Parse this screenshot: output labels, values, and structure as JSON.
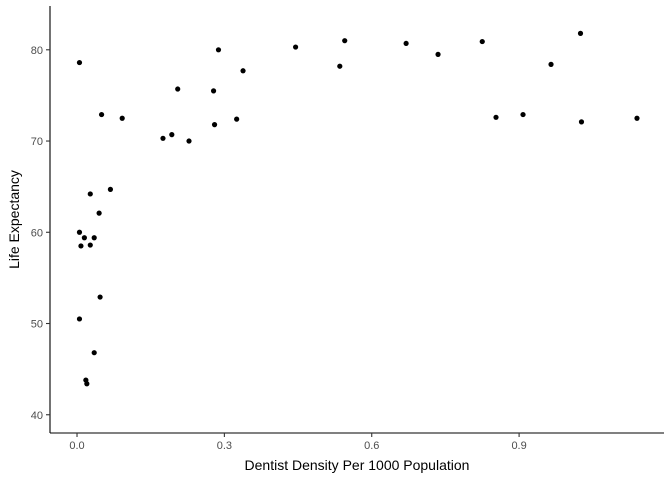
{
  "chart_data": {
    "type": "scatter",
    "title": "",
    "xlabel": "Dentist Density Per 1000 Population",
    "ylabel": "Life Expectancy",
    "xlim": [
      -0.055,
      1.195
    ],
    "ylim": [
      38.0,
      84.8
    ],
    "x_ticks": [
      0.0,
      0.3,
      0.6,
      0.9
    ],
    "x_tick_labels": [
      "0.0",
      "0.3",
      "0.6",
      "0.9"
    ],
    "y_ticks": [
      40,
      50,
      60,
      70,
      80
    ],
    "y_tick_labels": [
      "40",
      "50",
      "60",
      "70",
      "80"
    ],
    "grid": false,
    "legend": "none",
    "point_color": "#000000",
    "points": [
      {
        "x": 0.005,
        "y": 78.6
      },
      {
        "x": 0.005,
        "y": 60.0
      },
      {
        "x": 0.008,
        "y": 58.5
      },
      {
        "x": 0.015,
        "y": 59.4
      },
      {
        "x": 0.005,
        "y": 50.5
      },
      {
        "x": 0.018,
        "y": 43.8
      },
      {
        "x": 0.02,
        "y": 43.4
      },
      {
        "x": 0.027,
        "y": 64.2
      },
      {
        "x": 0.027,
        "y": 58.6
      },
      {
        "x": 0.035,
        "y": 59.4
      },
      {
        "x": 0.035,
        "y": 46.8
      },
      {
        "x": 0.045,
        "y": 62.1
      },
      {
        "x": 0.047,
        "y": 52.9
      },
      {
        "x": 0.05,
        "y": 72.9
      },
      {
        "x": 0.068,
        "y": 64.7
      },
      {
        "x": 0.092,
        "y": 72.5
      },
      {
        "x": 0.175,
        "y": 70.3
      },
      {
        "x": 0.193,
        "y": 70.7
      },
      {
        "x": 0.205,
        "y": 75.7
      },
      {
        "x": 0.228,
        "y": 70.0
      },
      {
        "x": 0.278,
        "y": 75.5
      },
      {
        "x": 0.28,
        "y": 71.8
      },
      {
        "x": 0.288,
        "y": 80.0
      },
      {
        "x": 0.325,
        "y": 72.4
      },
      {
        "x": 0.338,
        "y": 77.7
      },
      {
        "x": 0.445,
        "y": 80.3
      },
      {
        "x": 0.535,
        "y": 78.2
      },
      {
        "x": 0.545,
        "y": 81.0
      },
      {
        "x": 0.67,
        "y": 80.7
      },
      {
        "x": 0.735,
        "y": 79.5
      },
      {
        "x": 0.825,
        "y": 80.9
      },
      {
        "x": 0.853,
        "y": 72.6
      },
      {
        "x": 0.908,
        "y": 72.9
      },
      {
        "x": 0.965,
        "y": 78.4
      },
      {
        "x": 1.025,
        "y": 81.8
      },
      {
        "x": 1.027,
        "y": 72.1
      },
      {
        "x": 1.14,
        "y": 72.5
      }
    ]
  }
}
